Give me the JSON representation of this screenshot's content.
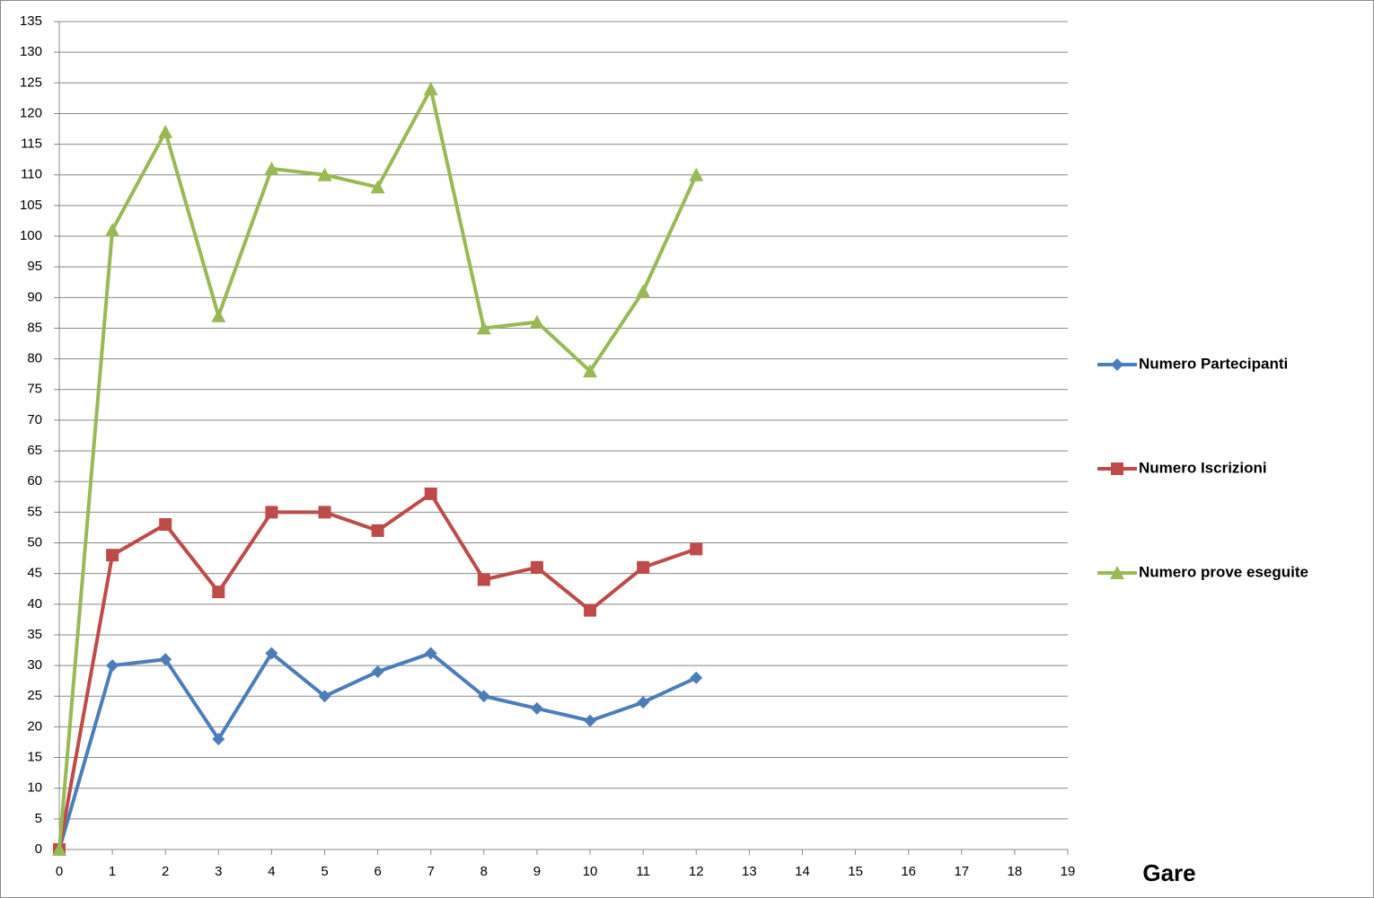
{
  "chart_data": {
    "type": "line",
    "x_label": "Gare",
    "x": [
      0,
      1,
      2,
      3,
      4,
      5,
      6,
      7,
      8,
      9,
      10,
      11,
      12
    ],
    "series": [
      {
        "name": "Numero Partecipanti",
        "color": "#4a7ebb",
        "marker": "diamond",
        "values": [
          0,
          30,
          31,
          18,
          32,
          25,
          29,
          32,
          25,
          23,
          21,
          24,
          28
        ]
      },
      {
        "name": "Numero Iscrizioni",
        "color": "#be4b48",
        "marker": "square",
        "values": [
          0,
          48,
          53,
          42,
          55,
          55,
          52,
          58,
          44,
          46,
          39,
          46,
          49
        ]
      },
      {
        "name": "Numero prove eseguite",
        "color": "#98b954",
        "marker": "triangle",
        "values": [
          0,
          101,
          117,
          87,
          111,
          110,
          108,
          124,
          85,
          86,
          78,
          91,
          110
        ]
      }
    ],
    "xlim": [
      0,
      19
    ],
    "xticks": [
      0,
      1,
      2,
      3,
      4,
      5,
      6,
      7,
      8,
      9,
      10,
      11,
      12,
      13,
      14,
      15,
      16,
      17,
      18,
      19
    ],
    "ylim": [
      0,
      135
    ],
    "yticks": [
      0,
      5,
      10,
      15,
      20,
      25,
      30,
      35,
      40,
      45,
      50,
      55,
      60,
      65,
      70,
      75,
      80,
      85,
      90,
      95,
      100,
      105,
      110,
      115,
      120,
      125,
      130,
      135
    ],
    "grid": true,
    "legend": "right"
  }
}
